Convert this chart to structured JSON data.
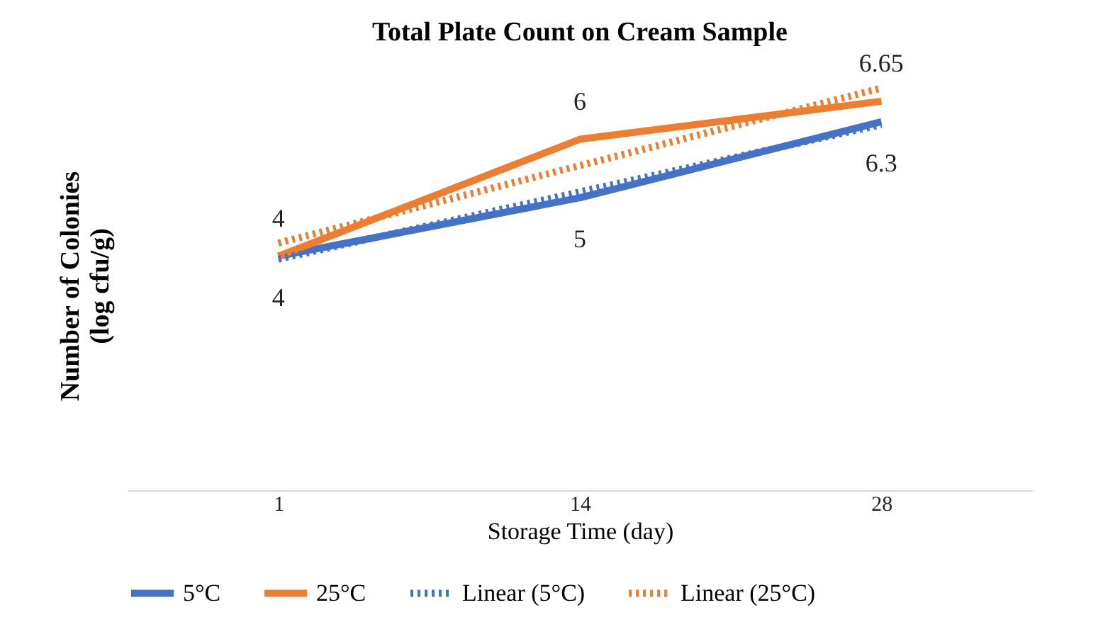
{
  "chart_data": {
    "type": "line",
    "title": "Total Plate Count on Cream Sample",
    "xlabel": "Storage Time (day)",
    "ylabel": "Number of Colonies (log cfu/g)",
    "categories": [
      "1",
      "14",
      "28"
    ],
    "tick_labels": "x",
    "legend": "bottom",
    "marker": "none",
    "series": [
      {
        "name": "5°C",
        "color": "#4472c4",
        "values": [
          4,
          5,
          6.3
        ],
        "value_labels": [
          "4",
          "5",
          "6.3"
        ],
        "line_style": "solid"
      },
      {
        "name": "25°C",
        "color": "#ed7d31",
        "values": [
          4,
          6,
          6.65
        ],
        "value_labels": [
          "4",
          "6",
          "6.65"
        ],
        "line_style": "solid"
      },
      {
        "name": "Linear (5°C)",
        "color": "#4472c4",
        "values": [
          3.95,
          5.1,
          6.25
        ],
        "line_style": "dotted"
      },
      {
        "name": "Linear (25°C)",
        "color": "#ed7d31",
        "values": [
          4.225,
          5.55,
          6.875
        ],
        "line_style": "dotted"
      }
    ]
  }
}
